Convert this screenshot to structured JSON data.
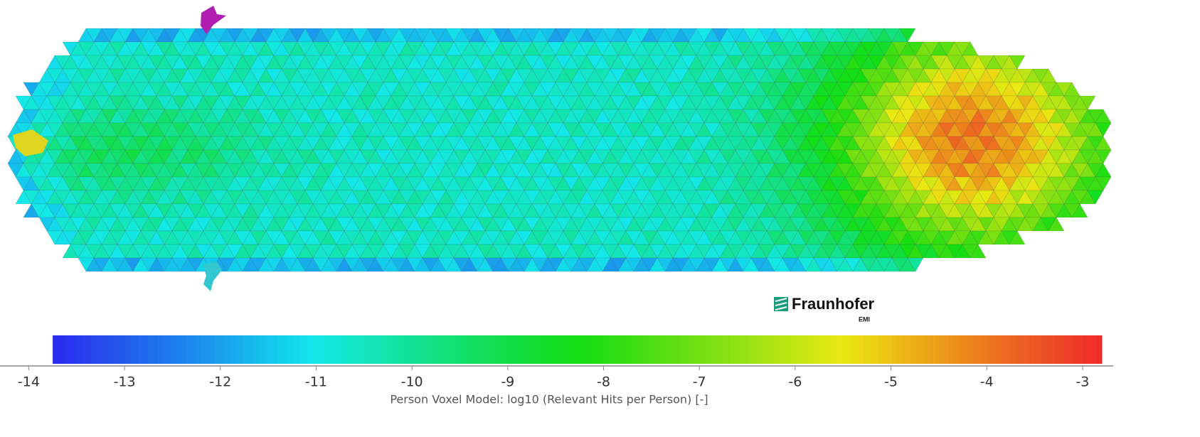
{
  "chart_data": {
    "type": "colorbar",
    "xlabel": "Person Voxel Model: log10 (Relevant Hits per Person) [-]",
    "xlim": [
      -14.3,
      -2.68
    ],
    "xticks": [
      -14,
      -13,
      -12,
      -11,
      -10,
      -9,
      -8,
      -7,
      -6,
      -5,
      -4,
      -3
    ],
    "colorbar_range": [
      -13.75,
      -2.8
    ]
  },
  "logo": {
    "name": "Fraunhofer",
    "sub": "EMI"
  }
}
